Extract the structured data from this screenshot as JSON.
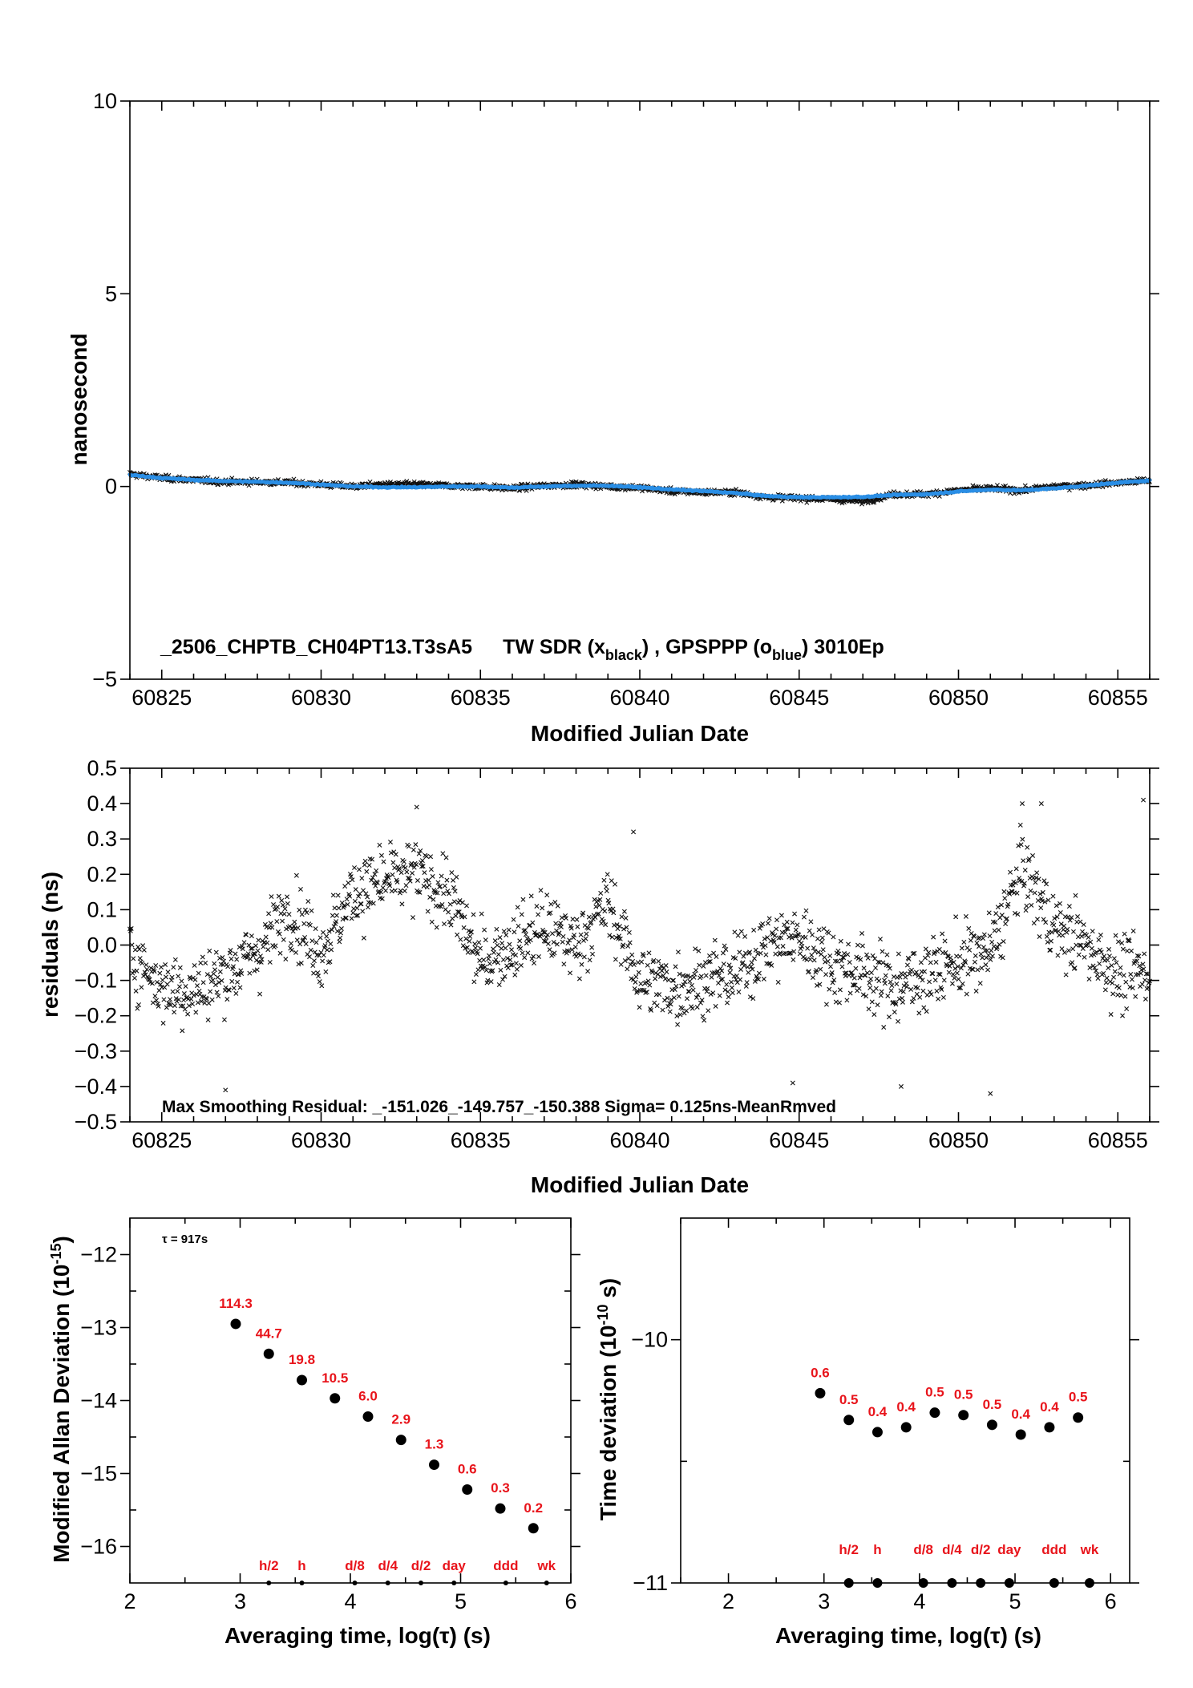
{
  "chart_data": [
    {
      "type": "scatter",
      "xlabel": "Modified Julian Date",
      "ylabel": "nanosecond",
      "xlim": [
        60824,
        60856
      ],
      "ylim": [
        -5,
        10
      ],
      "xticks": [
        60825,
        60830,
        60835,
        60840,
        60845,
        60850,
        60855
      ],
      "yticks": [
        -5,
        0,
        5,
        10
      ],
      "xticklabels": [
        "60825",
        "60830",
        "60835",
        "60840",
        "60845",
        "60850",
        "60855"
      ],
      "yticklabels": [
        "−5",
        "0",
        "5",
        "10"
      ],
      "annotation": {
        "id": "_2506_CHPTB_CH04PT13.T3sA5",
        "series_text": "TW SDR (x",
        "black_sub": "black",
        "mid_text": ") ,  GPSPPP (o",
        "blue_sub": "blue",
        "end_text": ")  3010Ep"
      },
      "colors": {
        "tw_sdr": "#111111",
        "gpsppp": "#2a8ee5"
      },
      "series": [
        {
          "marker": "x",
          "color": "#111111",
          "x": [
            60824.0,
            60825.0,
            60826.0,
            60827.0,
            60828.0,
            60829.0,
            60830.0,
            60831.0,
            60832.0,
            60833.0,
            60834.0,
            60835.0,
            60836.0,
            60837.0,
            60838.0,
            60839.0,
            60840.0,
            60841.0,
            60842.0,
            60843.0,
            60844.0,
            60845.0,
            60846.0,
            60847.0,
            60848.0,
            60849.0,
            60850.0,
            60851.0,
            60852.0,
            60853.0,
            60854.0,
            60855.0,
            60856.0
          ],
          "y": [
            0.32,
            0.22,
            0.17,
            0.12,
            0.12,
            0.1,
            0.05,
            0.0,
            0.05,
            0.05,
            0.02,
            0.0,
            -0.05,
            0.02,
            0.05,
            0.0,
            -0.03,
            -0.12,
            -0.15,
            -0.15,
            -0.28,
            -0.3,
            -0.33,
            -0.38,
            -0.2,
            -0.2,
            -0.1,
            -0.05,
            -0.1,
            0.0,
            0.03,
            0.1,
            0.15
          ]
        },
        {
          "marker": "o",
          "color": "#2a8ee5",
          "x": [
            60824.0,
            60825.0,
            60826.0,
            60827.0,
            60828.0,
            60829.0,
            60830.0,
            60831.0,
            60832.0,
            60833.0,
            60834.0,
            60835.0,
            60836.0,
            60837.0,
            60838.0,
            60839.0,
            60840.0,
            60841.0,
            60842.0,
            60843.0,
            60844.0,
            60845.0,
            60846.0,
            60847.0,
            60848.0,
            60849.0,
            60850.0,
            60851.0,
            60852.0,
            60853.0,
            60854.0,
            60855.0,
            60856.0
          ],
          "y": [
            0.3,
            0.22,
            0.17,
            0.14,
            0.12,
            0.1,
            0.05,
            0.0,
            -0.02,
            -0.02,
            0.0,
            0.0,
            -0.03,
            0.0,
            0.02,
            0.02,
            -0.02,
            -0.08,
            -0.12,
            -0.17,
            -0.25,
            -0.28,
            -0.28,
            -0.27,
            -0.22,
            -0.2,
            -0.13,
            -0.08,
            -0.1,
            -0.05,
            0.02,
            0.1,
            0.15
          ]
        }
      ]
    },
    {
      "type": "scatter",
      "xlabel": "Modified Julian Date",
      "ylabel": "residuals (ns)",
      "xlim": [
        60824,
        60856
      ],
      "ylim": [
        -0.5,
        0.5
      ],
      "xticks": [
        60825,
        60830,
        60835,
        60840,
        60845,
        60850,
        60855
      ],
      "yticks": [
        -0.5,
        -0.4,
        -0.3,
        -0.2,
        -0.1,
        0.0,
        0.1,
        0.2,
        0.3,
        0.4,
        0.5
      ],
      "xticklabels": [
        "60825",
        "60830",
        "60835",
        "60840",
        "60845",
        "60850",
        "60855"
      ],
      "yticklabels": [
        "−0.5",
        "−0.4",
        "−0.3",
        "−0.2",
        "−0.1",
        "0.0",
        "0.1",
        "0.2",
        "0.3",
        "0.4",
        "0.5"
      ],
      "annotation": "Max Smoothing Residual: _-151.026_-149.757_-150.388  Sigma= 0.125ns-MeanRmved",
      "series": [
        {
          "marker": "x",
          "color": "#111111",
          "trend_x": [
            60824.0,
            60825.0,
            60826.0,
            60827.0,
            60828.0,
            60829.0,
            60830.0,
            60831.0,
            60832.0,
            60833.0,
            60834.0,
            60835.0,
            60836.0,
            60837.0,
            60838.0,
            60839.0,
            60840.0,
            60841.0,
            60842.0,
            60843.0,
            60844.0,
            60845.0,
            60846.0,
            60847.0,
            60848.0,
            60849.0,
            60850.0,
            60851.0,
            60852.0,
            60853.0,
            60854.0,
            60855.0,
            60856.0
          ],
          "trend_y": [
            -0.02,
            -0.12,
            -0.13,
            -0.08,
            -0.02,
            0.1,
            -0.02,
            0.15,
            0.18,
            0.2,
            0.14,
            -0.05,
            0.0,
            0.05,
            0.0,
            0.12,
            -0.1,
            -0.12,
            -0.1,
            -0.08,
            0.0,
            0.02,
            -0.05,
            -0.08,
            -0.12,
            -0.08,
            -0.05,
            -0.02,
            0.22,
            0.05,
            0.0,
            -0.08,
            -0.08
          ],
          "notable_points": [
            {
              "x": 60833.0,
              "y": 0.39
            },
            {
              "x": 60839.8,
              "y": 0.32
            },
            {
              "x": 60852.0,
              "y": 0.4
            },
            {
              "x": 60852.6,
              "y": 0.4
            },
            {
              "x": 60855.8,
              "y": 0.41
            },
            {
              "x": 60827.0,
              "y": -0.41
            },
            {
              "x": 60844.8,
              "y": -0.39
            },
            {
              "x": 60848.2,
              "y": -0.4
            },
            {
              "x": 60851.0,
              "y": -0.42
            }
          ]
        }
      ]
    },
    {
      "type": "scatter",
      "xlabel": "Averaging time, log(τ) (s)",
      "ylabel": "Modified Allan Deviation (10",
      "ylabel_sup": "-15",
      "ylabel_end": ")",
      "xlim": [
        2,
        6
      ],
      "ylim": [
        -16.5,
        -11.5
      ],
      "xticks": [
        2,
        3,
        4,
        5,
        6
      ],
      "yticks": [
        -16,
        -15,
        -14,
        -13,
        -12
      ],
      "xticklabels": [
        "2",
        "3",
        "4",
        "5",
        "6"
      ],
      "yticklabels": [
        "−16",
        "−15",
        "−14",
        "−13",
        "−12"
      ],
      "tau_note": "τ = 917s",
      "series": [
        {
          "x": [
            2.96,
            3.26,
            3.56,
            3.86,
            4.16,
            4.46,
            4.76,
            5.06,
            5.36,
            5.66
          ],
          "y": [
            -12.95,
            -13.36,
            -13.72,
            -13.97,
            -14.22,
            -14.54,
            -14.88,
            -15.22,
            -15.48,
            -15.75
          ],
          "labels": [
            "114.3",
            "44.7",
            "19.8",
            "10.5",
            "6.0",
            "2.9",
            "1.3",
            "0.6",
            "0.3",
            "0.2"
          ]
        }
      ],
      "reference_marks": {
        "x": [
          3.26,
          3.56,
          4.04,
          4.34,
          4.64,
          4.94,
          5.41,
          5.78
        ],
        "labels": [
          "h/2",
          "h",
          "d/8",
          "d/4",
          "d/2",
          "day",
          "ddd",
          "wk"
        ]
      }
    },
    {
      "type": "scatter",
      "xlabel": "Averaging time, log(τ) (s)",
      "ylabel": "Time deviation (10",
      "ylabel_sup": "-10",
      "ylabel_end": " s)",
      "xlim": [
        1.5,
        6.2
      ],
      "ylim": [
        -11,
        -9.5
      ],
      "xticks": [
        2,
        3,
        4,
        5,
        6
      ],
      "yticks": [
        -11,
        -10
      ],
      "xticklabels": [
        "2",
        "3",
        "4",
        "5",
        "6"
      ],
      "yticklabels": [
        "−11",
        "−10"
      ],
      "series": [
        {
          "x": [
            2.96,
            3.26,
            3.56,
            3.86,
            4.16,
            4.46,
            4.76,
            5.06,
            5.36,
            5.66
          ],
          "y": [
            -10.22,
            -10.33,
            -10.38,
            -10.36,
            -10.3,
            -10.31,
            -10.35,
            -10.39,
            -10.36,
            -10.32
          ],
          "labels": [
            "0.6",
            "0.5",
            "0.4",
            "0.4",
            "0.5",
            "0.5",
            "0.5",
            "0.4",
            "0.4",
            "0.5"
          ]
        }
      ],
      "reference_marks": {
        "x": [
          3.26,
          3.56,
          4.04,
          4.34,
          4.64,
          4.94,
          5.41,
          5.78
        ],
        "labels": [
          "h/2",
          "h",
          "d/8",
          "d/4",
          "d/2",
          "day",
          "ddd",
          "wk"
        ]
      }
    }
  ]
}
